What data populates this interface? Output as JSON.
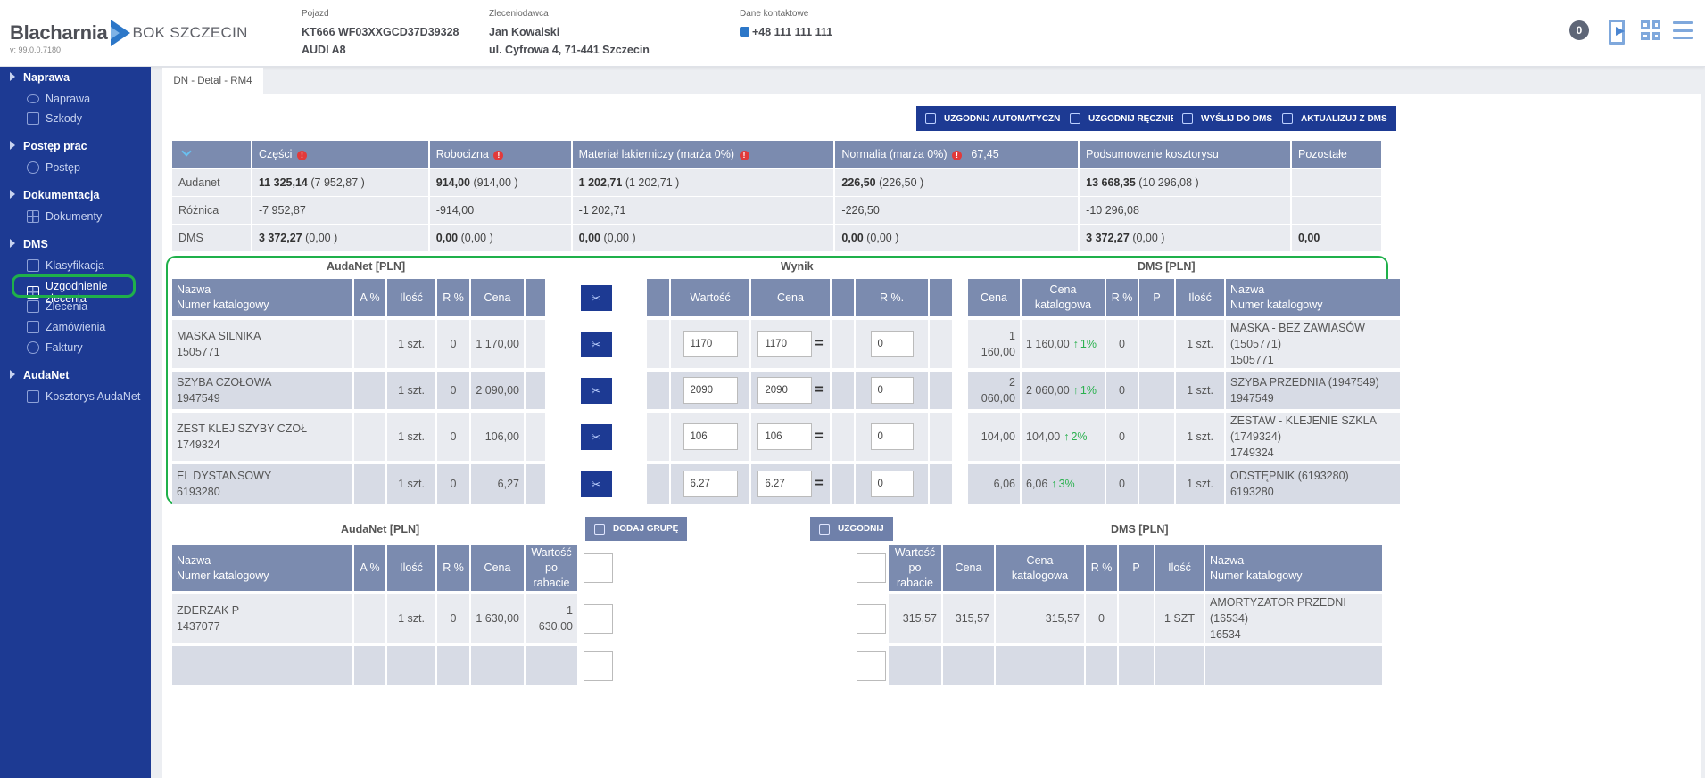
{
  "header": {
    "logo_main": "Blacharnia",
    "logo_sub": "BOK SZCZECIN",
    "version": "v: 99.0.0.7180",
    "vehicle": {
      "label": "Pojazd",
      "line1": "KT666 WF03XXGCD37D39328",
      "line2": "AUDI A8"
    },
    "client": {
      "label": "Zleceniodawca",
      "line1": "Jan Kowalski",
      "line2": "ul. Cyfrowa 4, 71-441 Szczecin"
    },
    "contact": {
      "label": "Dane kontaktowe",
      "phone": "+48 111 111 111"
    },
    "badge": "0",
    "icons": [
      "logout-icon",
      "qr-icon",
      "menu-icon"
    ]
  },
  "sidebar": {
    "groups": [
      {
        "label": "Naprawa",
        "items": [
          {
            "label": "Naprawa",
            "icon": "eye-icon"
          },
          {
            "label": "Szkody",
            "icon": "damage-icon"
          }
        ]
      },
      {
        "label": "Postęp prac",
        "items": [
          {
            "label": "Postęp",
            "icon": "clock-icon"
          }
        ]
      },
      {
        "label": "Dokumentacja",
        "items": [
          {
            "label": "Dokumenty",
            "icon": "documents-icon"
          }
        ]
      },
      {
        "label": "DMS",
        "items": [
          {
            "label": "Klasyfikacja",
            "icon": "classification-icon"
          },
          {
            "label": "Uzgodnienie zlecenia",
            "icon": "reconcile-icon",
            "active": true
          },
          {
            "label": "Zlecenia",
            "icon": "box-icon"
          },
          {
            "label": "Zamówienia",
            "icon": "box-icon"
          },
          {
            "label": "Faktury",
            "icon": "invoice-icon"
          }
        ]
      },
      {
        "label": "AudaNet",
        "items": [
          {
            "label": "Kosztorys AudaNet",
            "icon": "estimate-icon"
          }
        ]
      }
    ]
  },
  "tab": "DN - Detal - RM4",
  "toolbar": {
    "auto": "UZGODNIJ AUTOMATYCZNIE",
    "manual": "UZGODNIJ RĘCZNIE",
    "send": "WYŚLIJ DO DMS",
    "update": "AKTUALIZUJ Z DMS"
  },
  "summary": {
    "headers": [
      "Części",
      "Robocizna",
      "Materiał lakierniczy (marża 0%)",
      "Normalia (marża 0%)",
      "Podsumowanie kosztorysu",
      "Pozostałe"
    ],
    "normalia_value": "67,45",
    "rows": [
      {
        "label": "Audanet",
        "cells": [
          [
            "11 325,14",
            "(7 952,87 )"
          ],
          [
            "914,00",
            "(914,00 )"
          ],
          [
            "1 202,71",
            "(1 202,71 )"
          ],
          [
            "226,50",
            "(226,50 )"
          ],
          [
            "13 668,35",
            "(10 296,08 )"
          ],
          [
            "",
            ""
          ]
        ]
      },
      {
        "label": "Różnica",
        "cells": [
          [
            "-7 952,87",
            ""
          ],
          [
            "-914,00",
            ""
          ],
          [
            "-1 202,71",
            ""
          ],
          [
            "-226,50",
            ""
          ],
          [
            "-10 296,08",
            ""
          ],
          [
            "",
            ""
          ]
        ]
      },
      {
        "label": "DMS",
        "cells": [
          [
            "3 372,27",
            "(0,00 )"
          ],
          [
            "0,00",
            "(0,00 )"
          ],
          [
            "0,00",
            "(0,00 )"
          ],
          [
            "0,00",
            "(0,00 )"
          ],
          [
            "3 372,27",
            "(0,00 )"
          ],
          [
            "0,00",
            ""
          ]
        ]
      }
    ]
  },
  "matched": {
    "left_title": "AudaNet [PLN]",
    "mid_title": "Wynik",
    "right_title": "DMS [PLN]",
    "headers": {
      "name": "Nazwa",
      "catalog": "Numer katalogowy",
      "a_pct": "A %",
      "qty": "Ilość",
      "r_pct": "R %",
      "price": "Cena",
      "value": "Wartość",
      "r_pct2": "R %.",
      "catalog_price_1": "Cena",
      "catalog_price_2": "katalogowa",
      "p": "P"
    },
    "rows": [
      {
        "name": "MASKA SILNIKA",
        "num": "1505771",
        "qty": "1 szt.",
        "r": "0",
        "price": "1 170,00",
        "value": "1170",
        "w_price": "1170",
        "w_r": "0",
        "dms_price": "1 160,00",
        "dms_cat": "1 160,00",
        "pct": "1%",
        "dms_r": "0",
        "dms_qty": "1 szt.",
        "dms_name": "MASKA - BEZ ZAWIASÓW (1505771)",
        "dms_num": "1505771"
      },
      {
        "name": "SZYBA CZOŁOWA",
        "num": "1947549",
        "qty": "1 szt.",
        "r": "0",
        "price": "2 090,00",
        "value": "2090",
        "w_price": "2090",
        "w_r": "0",
        "dms_price": "2 060,00",
        "dms_cat": "2 060,00",
        "pct": "1%",
        "dms_r": "0",
        "dms_qty": "1 szt.",
        "dms_name": "SZYBA PRZEDNIA (1947549)",
        "dms_num": "1947549"
      },
      {
        "name": "ZEST KLEJ SZYBY CZOŁ",
        "num": "1749324",
        "qty": "1 szt.",
        "r": "0",
        "price": "106,00",
        "value": "106",
        "w_price": "106",
        "w_r": "0",
        "dms_price": "104,00",
        "dms_cat": "104,00",
        "pct": "2%",
        "dms_r": "0",
        "dms_qty": "1 szt.",
        "dms_name": "ZESTAW - KLEJENIE SZKLA (1749324)",
        "dms_num": "1749324"
      },
      {
        "name": "EL DYSTANSOWY",
        "num": "6193280",
        "qty": "1 szt.",
        "r": "0",
        "price": "6,27",
        "value": "6.27",
        "w_price": "6.27",
        "w_r": "0",
        "dms_price": "6,06",
        "dms_cat": "6,06",
        "pct": "3%",
        "dms_r": "0",
        "dms_qty": "1 szt.",
        "dms_name": "ODSTĘPNIK (6193280)",
        "dms_num": "6193280"
      }
    ]
  },
  "unmatched": {
    "left_title": "AudaNet [PLN]",
    "right_title": "DMS [PLN]",
    "add_group": "DODAJ GRUPĘ",
    "reconcile": "UZGODNIJ",
    "headers": {
      "name": "Nazwa",
      "catalog": "Numer katalogowy",
      "a_pct": "A %",
      "qty": "Ilość",
      "r_pct": "R %",
      "price": "Cena",
      "value_disc_1": "Wartość",
      "value_disc_2": "po rabacie",
      "catalog_price": "Cena katalogowa",
      "p": "P"
    },
    "rows": [
      {
        "name": "ZDERZAK P",
        "num": "1437077",
        "qty": "1 szt.",
        "r": "0",
        "price": "1 630,00",
        "value": "1 630,00",
        "dms_value": "315,57",
        "dms_price": "315,57",
        "dms_cat": "315,57",
        "dms_r": "0",
        "dms_qty": "1 SZT",
        "dms_name": "AMORTYZATOR PRZEDNI (16534)",
        "dms_num": "16534"
      }
    ]
  }
}
